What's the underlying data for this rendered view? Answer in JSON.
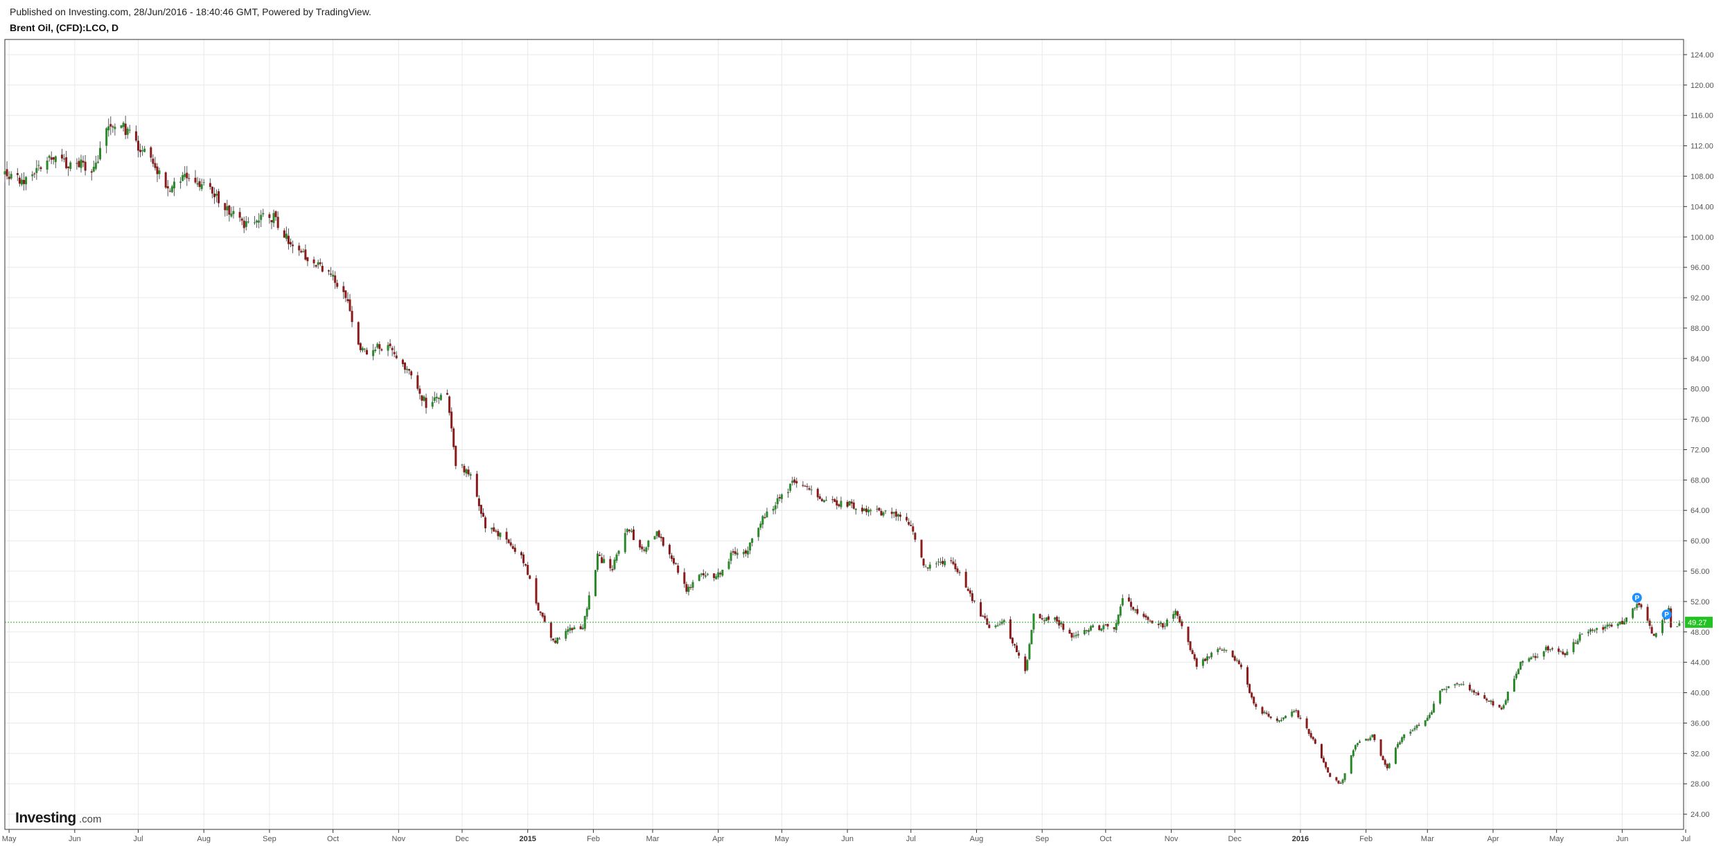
{
  "header": {
    "published": "Published on Investing.com, 28/Jun/2016 - 18:40:46 GMT, Powered by TradingView.",
    "symbol": "Brent Oil, (CFD):LCO, D"
  },
  "logo": {
    "main": "Investing",
    "suffix": ".com"
  },
  "colors": {
    "up": "#2a8a2a",
    "down": "#8b1a1a",
    "wick": "#555555",
    "grid": "#e8e8e8",
    "current_line": "#21b121",
    "current_tag": "#23c223",
    "marker": "#1e90ff"
  },
  "markers": [
    "P",
    "P"
  ],
  "chart_data": {
    "type": "candlestick",
    "title": "Brent Oil, (CFD):LCO, D",
    "ylim": [
      22,
      126
    ],
    "y_ticks": [
      "24.00",
      "28.00",
      "32.00",
      "36.00",
      "40.00",
      "44.00",
      "48.00",
      "52.00",
      "56.00",
      "60.00",
      "64.00",
      "68.00",
      "72.00",
      "76.00",
      "80.00",
      "84.00",
      "88.00",
      "92.00",
      "96.00",
      "100.00",
      "104.00",
      "108.00",
      "112.00",
      "116.00",
      "120.00",
      "124.00"
    ],
    "x_range": [
      "2014-04-29",
      "2016-06-30"
    ],
    "x_ticks": [
      {
        "date": "2014-05-01",
        "label": "May",
        "bold": false
      },
      {
        "date": "2014-06-01",
        "label": "Jun",
        "bold": false
      },
      {
        "date": "2014-07-01",
        "label": "Jul",
        "bold": false
      },
      {
        "date": "2014-08-01",
        "label": "Aug",
        "bold": false
      },
      {
        "date": "2014-09-01",
        "label": "Sep",
        "bold": false
      },
      {
        "date": "2014-10-01",
        "label": "Oct",
        "bold": false
      },
      {
        "date": "2014-11-01",
        "label": "Nov",
        "bold": false
      },
      {
        "date": "2014-12-01",
        "label": "Dec",
        "bold": false
      },
      {
        "date": "2015-01-01",
        "label": "2015",
        "bold": true
      },
      {
        "date": "2015-02-01",
        "label": "Feb",
        "bold": false
      },
      {
        "date": "2015-03-01",
        "label": "Mar",
        "bold": false
      },
      {
        "date": "2015-04-01",
        "label": "Apr",
        "bold": false
      },
      {
        "date": "2015-05-01",
        "label": "May",
        "bold": false
      },
      {
        "date": "2015-06-01",
        "label": "Jun",
        "bold": false
      },
      {
        "date": "2015-07-01",
        "label": "Jul",
        "bold": false
      },
      {
        "date": "2015-08-01",
        "label": "Aug",
        "bold": false
      },
      {
        "date": "2015-09-01",
        "label": "Sep",
        "bold": false
      },
      {
        "date": "2015-10-01",
        "label": "Oct",
        "bold": false
      },
      {
        "date": "2015-11-01",
        "label": "Nov",
        "bold": false
      },
      {
        "date": "2015-12-01",
        "label": "Dec",
        "bold": false
      },
      {
        "date": "2016-01-01",
        "label": "2016",
        "bold": true
      },
      {
        "date": "2016-02-01",
        "label": "Feb",
        "bold": false
      },
      {
        "date": "2016-03-01",
        "label": "Mar",
        "bold": false
      },
      {
        "date": "2016-04-01",
        "label": "Apr",
        "bold": false
      },
      {
        "date": "2016-05-01",
        "label": "May",
        "bold": false
      },
      {
        "date": "2016-06-01",
        "label": "Jun",
        "bold": false
      },
      {
        "date": "2016-07-01",
        "label": "Jul",
        "bold": false
      }
    ],
    "close_path": [
      [
        "2014-04-29",
        108.5
      ],
      [
        "2014-05-08",
        107.6
      ],
      [
        "2014-05-20",
        110.4
      ],
      [
        "2014-06-10",
        109.0
      ],
      [
        "2014-06-17",
        114.5
      ],
      [
        "2014-06-24",
        114.3
      ],
      [
        "2014-07-08",
        109.4
      ],
      [
        "2014-07-15",
        106.0
      ],
      [
        "2014-07-22",
        107.8
      ],
      [
        "2014-07-30",
        107.2
      ],
      [
        "2014-08-07",
        105.0
      ],
      [
        "2014-08-20",
        101.6
      ],
      [
        "2014-09-03",
        102.8
      ],
      [
        "2014-09-12",
        98.5
      ],
      [
        "2014-09-24",
        96.5
      ],
      [
        "2014-10-01",
        94.6
      ],
      [
        "2014-10-08",
        91.5
      ],
      [
        "2014-10-14",
        85.0
      ],
      [
        "2014-10-21",
        85.4
      ],
      [
        "2014-10-28",
        85.8
      ],
      [
        "2014-11-05",
        82.6
      ],
      [
        "2014-11-14",
        78.0
      ],
      [
        "2014-11-24",
        79.0
      ],
      [
        "2014-11-28",
        70.2
      ],
      [
        "2014-12-05",
        69.0
      ],
      [
        "2014-12-12",
        61.8
      ],
      [
        "2014-12-22",
        60.2
      ],
      [
        "2014-12-30",
        57.3
      ],
      [
        "2015-01-06",
        51.0
      ],
      [
        "2015-01-13",
        46.6
      ],
      [
        "2015-01-20",
        48.2
      ],
      [
        "2015-01-27",
        48.4
      ],
      [
        "2015-02-03",
        57.9
      ],
      [
        "2015-02-10",
        56.4
      ],
      [
        "2015-02-17",
        62.0
      ],
      [
        "2015-02-24",
        58.6
      ],
      [
        "2015-03-03",
        61.0
      ],
      [
        "2015-03-10",
        58.0
      ],
      [
        "2015-03-17",
        53.5
      ],
      [
        "2015-03-24",
        55.9
      ],
      [
        "2015-03-31",
        55.0
      ],
      [
        "2015-04-07",
        58.0
      ],
      [
        "2015-04-14",
        58.4
      ],
      [
        "2015-04-21",
        62.6
      ],
      [
        "2015-05-06",
        67.5
      ],
      [
        "2015-05-14",
        66.6
      ],
      [
        "2015-05-22",
        65.4
      ],
      [
        "2015-06-01",
        64.8
      ],
      [
        "2015-06-12",
        63.9
      ],
      [
        "2015-06-24",
        63.5
      ],
      [
        "2015-07-01",
        62.0
      ],
      [
        "2015-07-07",
        56.6
      ],
      [
        "2015-07-14",
        57.2
      ],
      [
        "2015-07-21",
        57.1
      ],
      [
        "2015-07-30",
        52.2
      ],
      [
        "2015-08-07",
        48.6
      ],
      [
        "2015-08-14",
        49.2
      ],
      [
        "2015-08-24",
        42.7
      ],
      [
        "2015-08-28",
        50.1
      ],
      [
        "2015-09-08",
        49.5
      ],
      [
        "2015-09-15",
        47.3
      ],
      [
        "2015-09-25",
        48.6
      ],
      [
        "2015-10-05",
        48.5
      ],
      [
        "2015-10-09",
        52.6
      ],
      [
        "2015-10-16",
        50.5
      ],
      [
        "2015-10-28",
        48.8
      ],
      [
        "2015-11-03",
        50.5
      ],
      [
        "2015-11-13",
        43.6
      ],
      [
        "2015-11-24",
        46.1
      ],
      [
        "2015-12-03",
        43.8
      ],
      [
        "2015-12-11",
        37.9
      ],
      [
        "2015-12-21",
        36.3
      ],
      [
        "2015-12-29",
        37.8
      ],
      [
        "2016-01-07",
        33.8
      ],
      [
        "2016-01-15",
        28.9
      ],
      [
        "2016-01-20",
        27.9
      ],
      [
        "2016-01-27",
        33.1
      ],
      [
        "2016-02-04",
        34.3
      ],
      [
        "2016-02-11",
        30.1
      ],
      [
        "2016-02-18",
        34.3
      ],
      [
        "2016-03-01",
        36.6
      ],
      [
        "2016-03-08",
        40.6
      ],
      [
        "2016-03-18",
        41.2
      ],
      [
        "2016-03-28",
        39.3
      ],
      [
        "2016-04-05",
        37.9
      ],
      [
        "2016-04-14",
        43.8
      ],
      [
        "2016-04-26",
        45.7
      ],
      [
        "2016-05-06",
        45.2
      ],
      [
        "2016-05-13",
        48.0
      ],
      [
        "2016-05-24",
        48.6
      ],
      [
        "2016-06-03",
        49.6
      ],
      [
        "2016-06-09",
        51.9
      ],
      [
        "2016-06-16",
        47.2
      ],
      [
        "2016-06-23",
        50.8
      ],
      [
        "2016-06-24",
        48.4
      ],
      [
        "2016-06-28",
        49.3
      ]
    ],
    "current_price": 49.27,
    "current_price_label": "49.27",
    "event_markers": [
      {
        "date": "2016-06-08",
        "price": 52.5,
        "label": "P"
      },
      {
        "date": "2016-06-22",
        "price": 50.3,
        "label": "P"
      }
    ]
  }
}
